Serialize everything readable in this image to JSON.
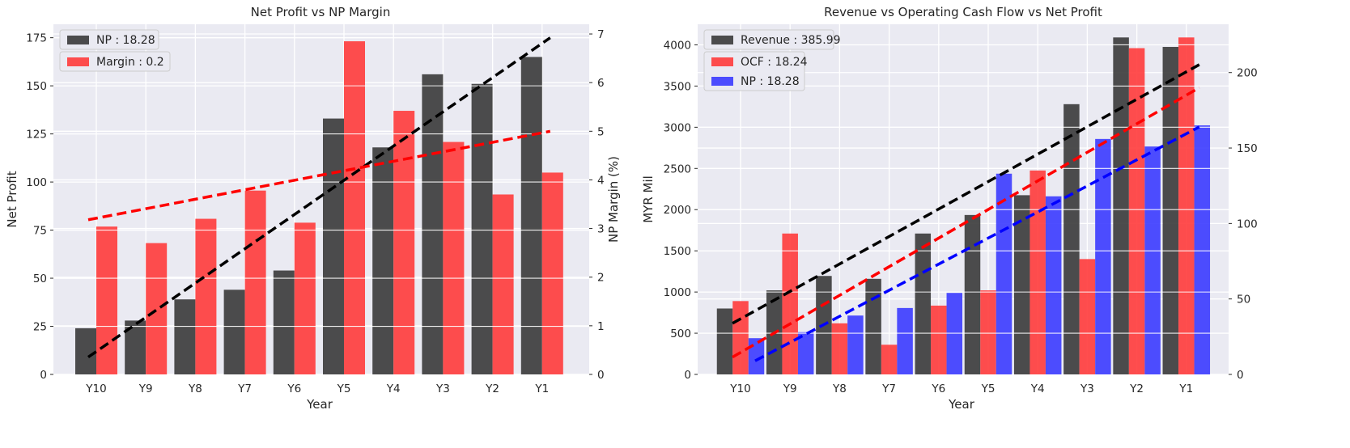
{
  "chart_data": [
    {
      "type": "bar",
      "title": "Net Profit vs NP Margin",
      "xlabel": "Year",
      "ylabel": "Net Profit",
      "ylabel_right": "NP Margin (%)",
      "categories": [
        "Y10",
        "Y9",
        "Y8",
        "Y7",
        "Y6",
        "Y5",
        "Y4",
        "Y3",
        "Y2",
        "Y1"
      ],
      "ylim": [
        0,
        182
      ],
      "ylim_right": [
        0,
        7.2
      ],
      "yticks": [
        0,
        25,
        50,
        75,
        100,
        125,
        150,
        175
      ],
      "yticks_right": [
        0,
        1,
        2,
        3,
        4,
        5,
        6,
        7
      ],
      "legend": "top-left",
      "grid": true,
      "series": [
        {
          "name": "NP : 18.28",
          "axis": "left",
          "color": "#3a3a3a",
          "values": [
            24,
            28,
            39,
            44,
            54,
            133,
            118,
            156,
            151,
            165
          ]
        },
        {
          "name": "Margin : 0.2",
          "axis": "right",
          "color": "#ff3b3b",
          "values": [
            3.04,
            2.7,
            3.2,
            3.78,
            3.12,
            6.85,
            5.42,
            4.78,
            3.7,
            4.15
          ]
        }
      ],
      "trendlines": [
        {
          "axis": "left",
          "color": "#000000",
          "from": [
            0,
            9
          ],
          "to": [
            9,
            175
          ]
        },
        {
          "axis": "right",
          "color": "#ff0000",
          "from": [
            0,
            3.18
          ],
          "to": [
            9,
            5.0
          ]
        }
      ]
    },
    {
      "type": "bar",
      "title": "Revenue vs Operating Cash Flow vs Net Profit",
      "xlabel": "Year",
      "ylabel": "MYR Mil",
      "categories": [
        "Y10",
        "Y9",
        "Y8",
        "Y7",
        "Y6",
        "Y5",
        "Y4",
        "Y3",
        "Y2",
        "Y1"
      ],
      "ylim": [
        0,
        4250
      ],
      "ylim_right": [
        0,
        232
      ],
      "yticks": [
        0,
        500,
        1000,
        1500,
        2000,
        2500,
        3000,
        3500,
        4000
      ],
      "yticks_right": [
        0,
        50,
        100,
        150,
        200
      ],
      "legend": "top-left",
      "grid": true,
      "series": [
        {
          "name": "Revenue : 385.99",
          "axis": "left",
          "color": "#3a3a3a",
          "values": [
            800,
            1020,
            1195,
            1160,
            1710,
            1935,
            2175,
            3280,
            4090,
            3975
          ]
        },
        {
          "name": "OCF : 18.24",
          "axis": "left",
          "color": "#ff3b3b",
          "values": [
            890,
            1710,
            620,
            360,
            835,
            1020,
            2475,
            1400,
            3960,
            4090
          ]
        },
        {
          "name": "NP : 18.28",
          "axis": "right",
          "color": "#3b3bff",
          "values": [
            24,
            28,
            39,
            44,
            54,
            133,
            118,
            156,
            151,
            165
          ]
        }
      ],
      "trendlines": [
        {
          "axis": "left",
          "color": "#000000",
          "from": [
            0,
            620
          ],
          "to": [
            9,
            3760
          ]
        },
        {
          "axis": "left",
          "color": "#ff0000",
          "from": [
            0,
            210
          ],
          "to": [
            9,
            3480
          ]
        },
        {
          "axis": "right",
          "color": "#0000ff",
          "from": [
            0,
            9
          ],
          "to": [
            9,
            164
          ]
        }
      ]
    }
  ]
}
